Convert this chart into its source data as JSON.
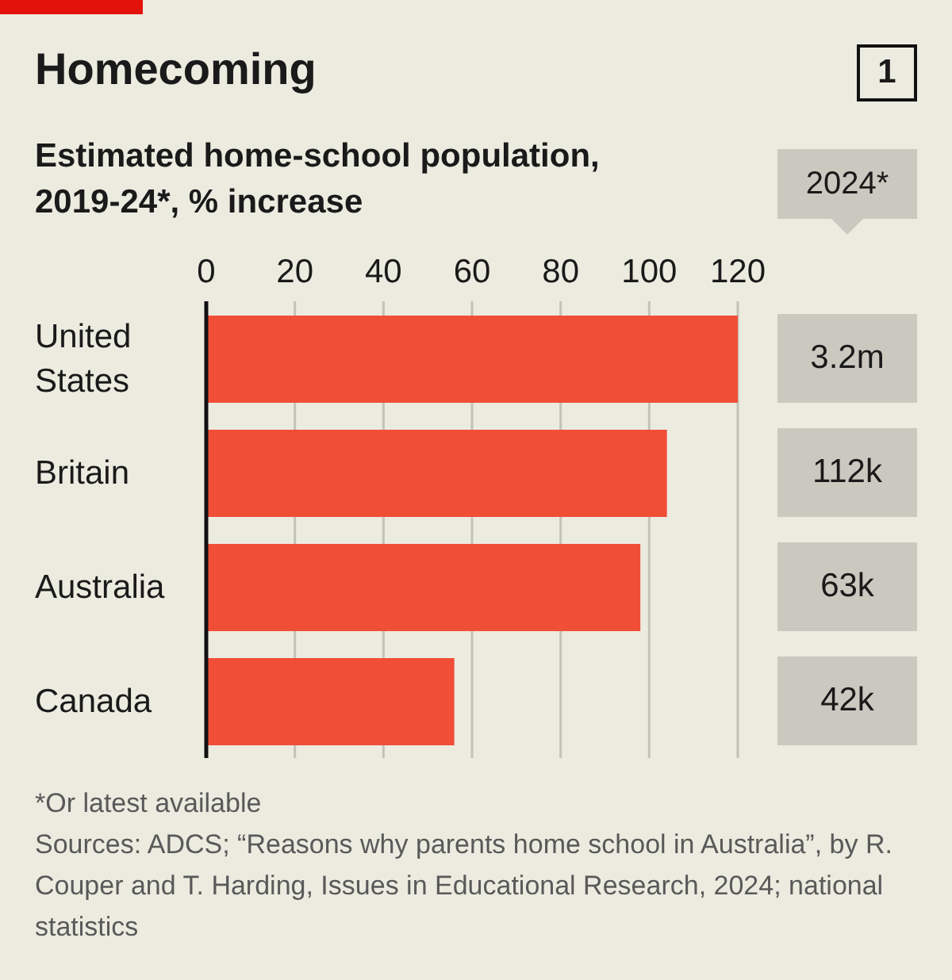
{
  "chart_data": {
    "type": "bar",
    "orientation": "horizontal",
    "title": "Homecoming",
    "subtitle": "Estimated home-school population, 2019-24*, % increase",
    "categories": [
      "United States",
      "Britain",
      "Australia",
      "Canada"
    ],
    "values": [
      120,
      104,
      98,
      56
    ],
    "color": "#f04e37",
    "xlim": [
      0,
      120
    ],
    "xticks": [
      0,
      20,
      40,
      60,
      80,
      100,
      120
    ],
    "grid": "x",
    "legend": false,
    "annotations": [
      "1",
      "2024*",
      "3.2m",
      "112k",
      "63k",
      "42k",
      "*Or latest available",
      "Sources: ADCS; “Reasons why parents home school in Australia”, by R. Couper and T. Harding, Issues in Educational Research, 2024; national statistics"
    ]
  }
}
